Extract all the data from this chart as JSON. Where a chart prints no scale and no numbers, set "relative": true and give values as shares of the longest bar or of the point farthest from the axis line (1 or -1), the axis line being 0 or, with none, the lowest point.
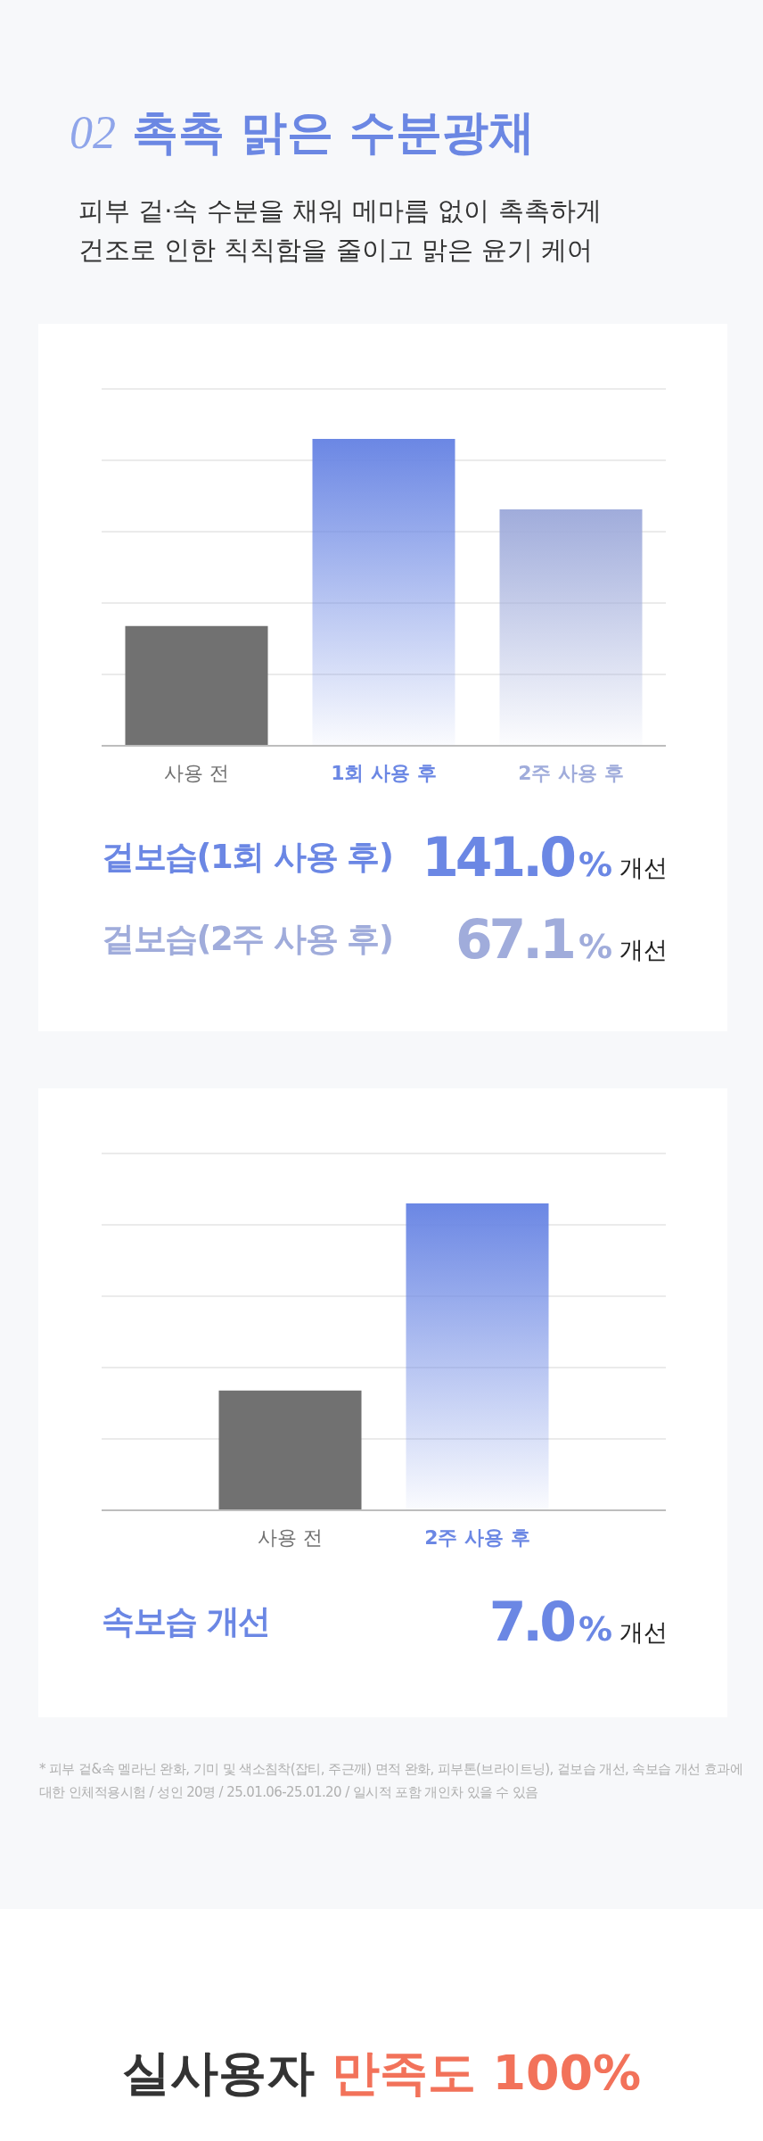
{
  "chart_data": [
    {
      "type": "bar",
      "title": "02 촉촉 맑은 수분광채",
      "subtitle": "피부 겉·속 수분을 채워 메마름 없이 촉촉하게\n건조로 인한 칙칙함을 줄이고 맑은 윤기 케어",
      "categories": [
        "사용 전",
        "1회 사용 후",
        "2주 사용 후"
      ],
      "values": [
        0.39,
        1,
        0.77
      ],
      "colors": [
        "#717171",
        "#6b87e4",
        "#a0acdb"
      ],
      "relative": true,
      "grid": "y",
      "annotations": [
        "겉보습(1회 사용 후)",
        "141.0%",
        "개선",
        "겉보습(2주 사용 후)",
        "67.1%",
        "개선"
      ]
    },
    {
      "type": "bar",
      "categories": [
        "사용 전",
        "2주 사용 후"
      ],
      "values": [
        0.39,
        1
      ],
      "colors": [
        "#717171",
        "#6b87e4"
      ],
      "relative": true,
      "grid": "y",
      "annotations": [
        "속보습 개선",
        "7.0%",
        "개선"
      ]
    },
    {
      "type": "other",
      "annotations": [
        "* 피부 겉&속 멜라닌 완화, 기미 및 색소침착(잡티, 주근깨) 면적 완화, 피부톤(브라이트닝), 겉보습 개선, 속보습 개선 효과에 대한 인체적용시험 / 성인 20명 / 25.01.06-25.01.20 / 일시적 포함 개인차 있을 수 있음"
      ]
    },
    {
      "type": "other",
      "title": "실사용자 만족도 100%"
    }
  ]
}
